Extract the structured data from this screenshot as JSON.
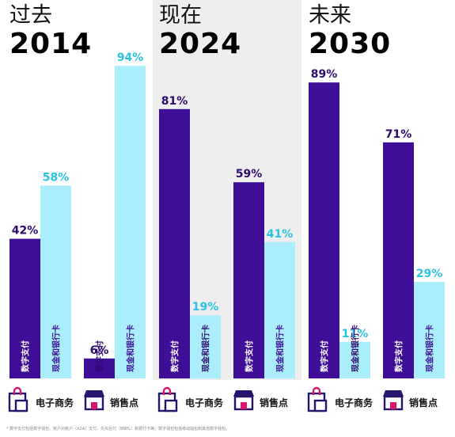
{
  "colors": {
    "digital": "#3e0f96",
    "cash": "#a9eefa",
    "digital_text": "#2e0a6e",
    "cash_text": "#29c3e3",
    "highlight_bg": "#eeeeee",
    "icon_magenta": "#d6156b",
    "icon_navy": "#25146a"
  },
  "periods": [
    {
      "label": "过去",
      "year": "2014"
    },
    {
      "label": "现在",
      "year": "2024"
    },
    {
      "label": "未来",
      "year": "2030"
    }
  ],
  "chart_data": {
    "type": "bar",
    "ylim": [
      0,
      100
    ],
    "categories": [
      "电子商务",
      "销售点",
      "电子商务",
      "销售点",
      "电子商务",
      "销售点"
    ],
    "groups": [
      {
        "period": "2014",
        "channel": "电子商务",
        "digital": 42,
        "cash": 58
      },
      {
        "period": "2014",
        "channel": "销售点",
        "digital": 6,
        "cash": 94
      },
      {
        "period": "2024",
        "channel": "电子商务",
        "digital": 81,
        "cash": 19
      },
      {
        "period": "2024",
        "channel": "销售点",
        "digital": 59,
        "cash": 41
      },
      {
        "period": "2030",
        "channel": "电子商务",
        "digital": 89,
        "cash": 11
      },
      {
        "period": "2030",
        "channel": "销售点",
        "digital": 71,
        "cash": 29
      }
    ],
    "series": [
      {
        "name": "数字支付",
        "color": "#3e0f96"
      },
      {
        "name": "现金和银行卡",
        "color": "#a9eefa"
      }
    ]
  },
  "channel_icons": {
    "ecommerce": "shopping-bag-icon",
    "pos": "storefront-icon"
  },
  "footnote": "* 数字支付包括数字钱包、账户对账户（A2A）支付、先买后付（BNPL）和预付卡等。数字钱包包括移动钱包和其他数字钱包。"
}
